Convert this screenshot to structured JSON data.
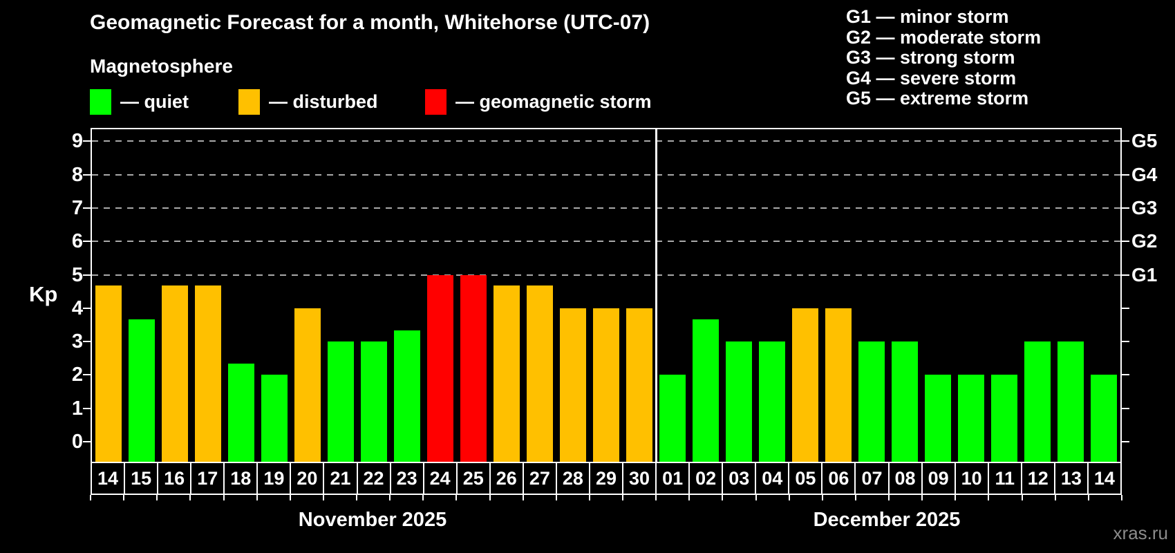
{
  "title": "Geomagnetic Forecast for a month, Whitehorse (UTC-07)",
  "subtitle": "Magnetosphere",
  "legend": {
    "quiet": {
      "label": "— quiet",
      "color": "#00ff00"
    },
    "disturbed": {
      "label": "— disturbed",
      "color": "#ffc000"
    },
    "storm": {
      "label": "— geomagnetic storm",
      "color": "#ff0000"
    }
  },
  "g_legend": [
    "G1 — minor storm",
    "G2 — moderate storm",
    "G3 — strong storm",
    "G4 — severe storm",
    "G5 — extreme storm"
  ],
  "colors": {
    "quiet": "#00ff00",
    "disturbed": "#ffc000",
    "storm": "#ff0000",
    "gridline": "#aaaaaa",
    "axis": "#ffffff",
    "watermark": "#8c8c8c"
  },
  "axis": {
    "kp_label": "Kp",
    "left_ticks": [
      0,
      1,
      2,
      3,
      4,
      5,
      6,
      7,
      8,
      9
    ],
    "right_labels": [
      {
        "value": 5,
        "label": "G1"
      },
      {
        "value": 6,
        "label": "G2"
      },
      {
        "value": 7,
        "label": "G3"
      },
      {
        "value": 8,
        "label": "G4"
      },
      {
        "value": 9,
        "label": "G5"
      }
    ]
  },
  "months": [
    {
      "label": "November 2025",
      "days": 17
    },
    {
      "label": "December 2025",
      "days": 14
    }
  ],
  "watermark": "xras.ru",
  "chart_data": {
    "type": "bar",
    "title": "Geomagnetic Forecast for a month, Whitehorse (UTC-07)",
    "xlabel": "",
    "ylabel": "Kp",
    "ylim": [
      0,
      9
    ],
    "gridlines_at": [
      5,
      6,
      7,
      8,
      9
    ],
    "legend_position": "top-left",
    "bars": [
      {
        "day": "14",
        "month": "November 2025",
        "kp": 4.67,
        "status": "disturbed"
      },
      {
        "day": "15",
        "month": "November 2025",
        "kp": 3.67,
        "status": "quiet"
      },
      {
        "day": "16",
        "month": "November 2025",
        "kp": 4.67,
        "status": "disturbed"
      },
      {
        "day": "17",
        "month": "November 2025",
        "kp": 4.67,
        "status": "disturbed"
      },
      {
        "day": "18",
        "month": "November 2025",
        "kp": 2.33,
        "status": "quiet"
      },
      {
        "day": "19",
        "month": "November 2025",
        "kp": 2.0,
        "status": "quiet"
      },
      {
        "day": "20",
        "month": "November 2025",
        "kp": 4.0,
        "status": "disturbed"
      },
      {
        "day": "21",
        "month": "November 2025",
        "kp": 3.0,
        "status": "quiet"
      },
      {
        "day": "22",
        "month": "November 2025",
        "kp": 3.0,
        "status": "quiet"
      },
      {
        "day": "23",
        "month": "November 2025",
        "kp": 3.33,
        "status": "quiet"
      },
      {
        "day": "24",
        "month": "November 2025",
        "kp": 5.0,
        "status": "storm"
      },
      {
        "day": "25",
        "month": "November 2025",
        "kp": 5.0,
        "status": "storm"
      },
      {
        "day": "26",
        "month": "November 2025",
        "kp": 4.67,
        "status": "disturbed"
      },
      {
        "day": "27",
        "month": "November 2025",
        "kp": 4.67,
        "status": "disturbed"
      },
      {
        "day": "28",
        "month": "November 2025",
        "kp": 4.0,
        "status": "disturbed"
      },
      {
        "day": "29",
        "month": "November 2025",
        "kp": 4.0,
        "status": "disturbed"
      },
      {
        "day": "30",
        "month": "November 2025",
        "kp": 4.0,
        "status": "disturbed"
      },
      {
        "day": "01",
        "month": "December 2025",
        "kp": 2.0,
        "status": "quiet"
      },
      {
        "day": "02",
        "month": "December 2025",
        "kp": 3.67,
        "status": "quiet"
      },
      {
        "day": "03",
        "month": "December 2025",
        "kp": 3.0,
        "status": "quiet"
      },
      {
        "day": "04",
        "month": "December 2025",
        "kp": 3.0,
        "status": "quiet"
      },
      {
        "day": "05",
        "month": "December 2025",
        "kp": 4.0,
        "status": "disturbed"
      },
      {
        "day": "06",
        "month": "December 2025",
        "kp": 4.0,
        "status": "disturbed"
      },
      {
        "day": "07",
        "month": "December 2025",
        "kp": 3.0,
        "status": "quiet"
      },
      {
        "day": "08",
        "month": "December 2025",
        "kp": 3.0,
        "status": "quiet"
      },
      {
        "day": "09",
        "month": "December 2025",
        "kp": 2.0,
        "status": "quiet"
      },
      {
        "day": "10",
        "month": "December 2025",
        "kp": 2.0,
        "status": "quiet"
      },
      {
        "day": "11",
        "month": "December 2025",
        "kp": 2.0,
        "status": "quiet"
      },
      {
        "day": "12",
        "month": "December 2025",
        "kp": 3.0,
        "status": "quiet"
      },
      {
        "day": "13",
        "month": "December 2025",
        "kp": 3.0,
        "status": "quiet"
      },
      {
        "day": "14",
        "month": "December 2025",
        "kp": 2.0,
        "status": "quiet"
      }
    ]
  }
}
